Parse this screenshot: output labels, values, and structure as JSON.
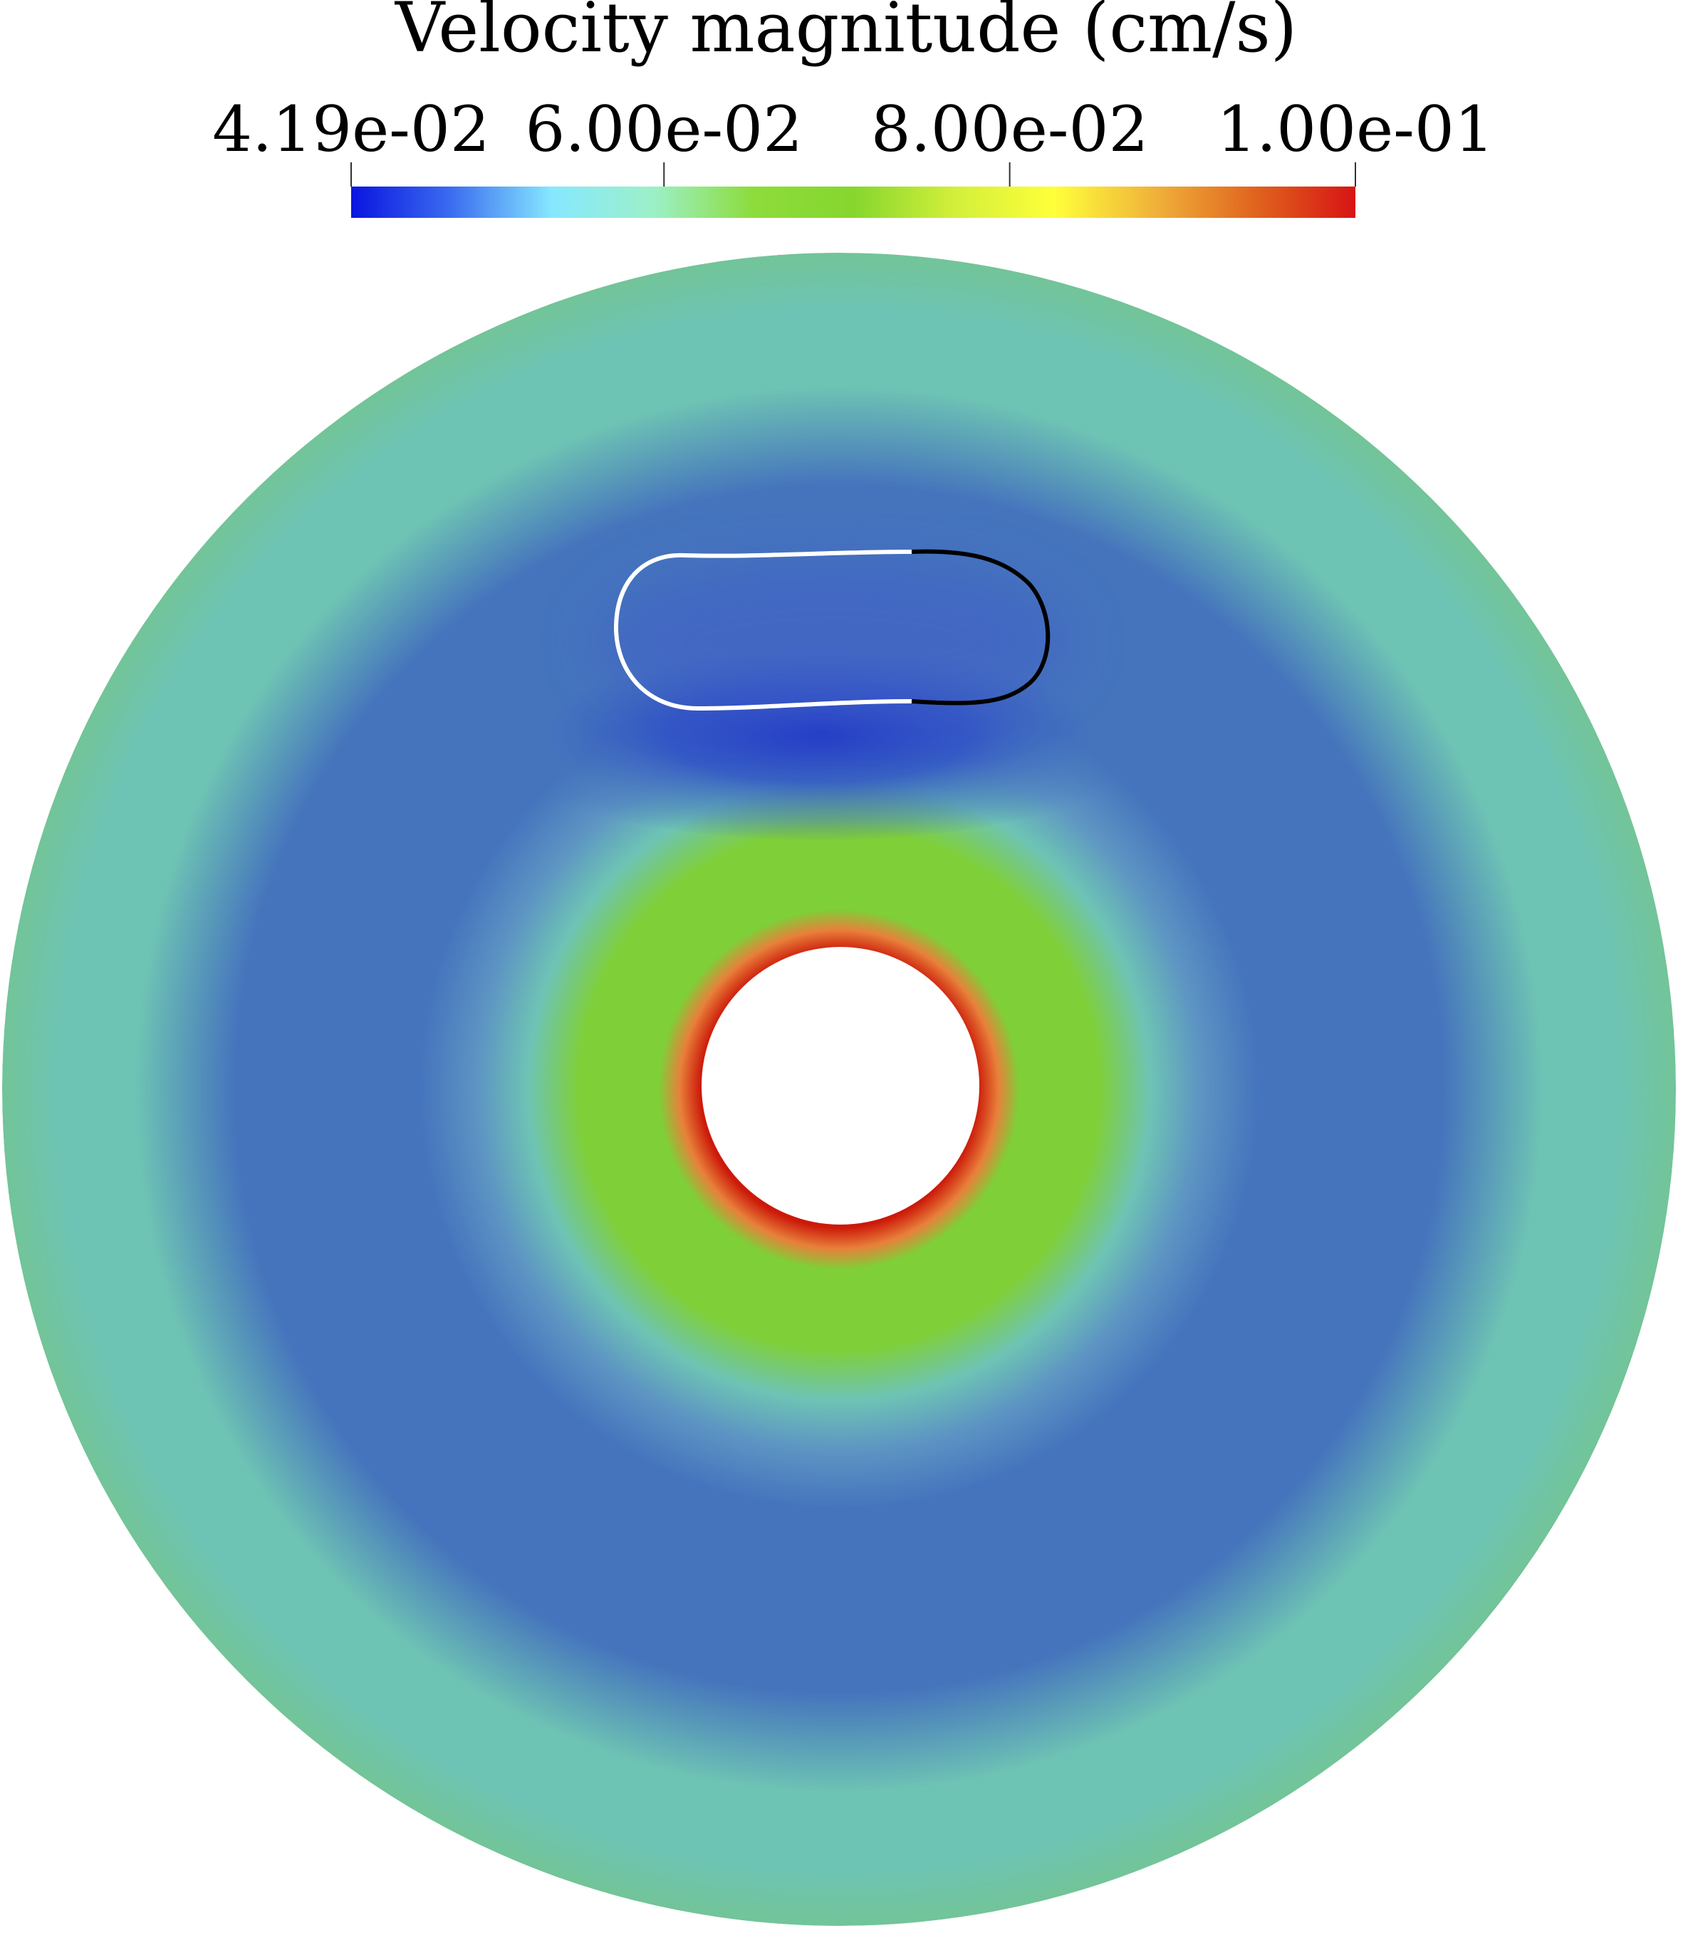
{
  "colorbar": {
    "title": "Velocity magnitude (cm/s)",
    "min": 0.0419,
    "max": 0.1,
    "ticks": [
      {
        "value": 0.0419,
        "label": "4.19e-02"
      },
      {
        "value": 0.06,
        "label": "6.00e-02"
      },
      {
        "value": 0.08,
        "label": "8.00e-02"
      },
      {
        "value": 0.1,
        "label": "1.00e-01"
      }
    ],
    "colormap_stops": [
      "#0a14e0",
      "#3b6df0",
      "#86e8ff",
      "#9cf0c8",
      "#8ddc3c",
      "#86d62e",
      "#d2ef3a",
      "#ffff3a",
      "#f0b23a",
      "#e0641e",
      "#d71414"
    ]
  },
  "field_colors": {
    "outer": "#73c497",
    "teal": "#6ec4b4",
    "blue": "#4574bd",
    "deep_blue": "#1a2dc8",
    "green": "#7fcf38",
    "inner_red": "#cc1a0a",
    "inner_hole": "#ffffff"
  },
  "capsule": {
    "upper_left_stroke": "#ffffff",
    "right_stroke": "#000000"
  }
}
